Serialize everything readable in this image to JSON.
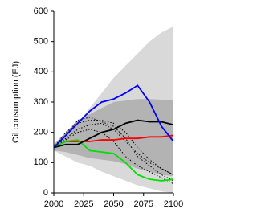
{
  "chart_data": {
    "type": "line",
    "y_label": "Oil consumption (EJ)",
    "x": [
      2000,
      2010,
      2020,
      2030,
      2040,
      2050,
      2060,
      2070,
      2080,
      2090,
      2100
    ],
    "xlim": [
      2000,
      2100
    ],
    "xticks": [
      2000,
      2025,
      2050,
      2075,
      2100
    ],
    "ylim": [
      0,
      600
    ],
    "yticks": [
      0,
      100,
      200,
      300,
      400,
      500,
      600
    ],
    "bands": [
      {
        "color": "#d9d9d9",
        "lower": [
          140,
          120,
          100,
          90,
          70,
          55,
          40,
          25,
          15,
          5,
          0
        ],
        "upper": [
          160,
          190,
          230,
          280,
          330,
          380,
          420,
          460,
          500,
          530,
          550
        ]
      },
      {
        "color": "#b3b3b3",
        "lower": [
          140,
          135,
          125,
          115,
          110,
          105,
          95,
          80,
          70,
          60,
          55
        ],
        "upper": [
          160,
          200,
          240,
          260,
          280,
          300,
          305,
          310,
          310,
          308,
          305
        ]
      }
    ],
    "series": [
      {
        "color": "#000000",
        "dash": true,
        "values": [
          150,
          200,
          230,
          240,
          240,
          230,
          200,
          150,
          110,
          80,
          60
        ]
      },
      {
        "color": "#000000",
        "dash": true,
        "values": [
          150,
          190,
          240,
          250,
          235,
          220,
          180,
          120,
          90,
          60,
          40
        ]
      },
      {
        "color": "#000000",
        "dash": true,
        "values": [
          150,
          180,
          210,
          225,
          230,
          210,
          170,
          130,
          100,
          80,
          60
        ]
      },
      {
        "color": "#000000",
        "dash": true,
        "values": [
          150,
          175,
          200,
          210,
          200,
          170,
          120,
          90,
          70,
          50,
          30
        ]
      },
      {
        "color": "#ff0000",
        "values": [
          150,
          170,
          170,
          170,
          175,
          175,
          180,
          180,
          185,
          185,
          190
        ]
      },
      {
        "color": "#00e000",
        "values": [
          150,
          170,
          175,
          140,
          135,
          130,
          100,
          60,
          45,
          40,
          45
        ]
      },
      {
        "color": "#000000",
        "values": [
          150,
          160,
          160,
          180,
          200,
          210,
          230,
          240,
          235,
          235,
          225
        ]
      },
      {
        "color": "#0000ff",
        "values": [
          150,
          190,
          230,
          270,
          300,
          310,
          330,
          355,
          300,
          220,
          170
        ]
      }
    ]
  }
}
